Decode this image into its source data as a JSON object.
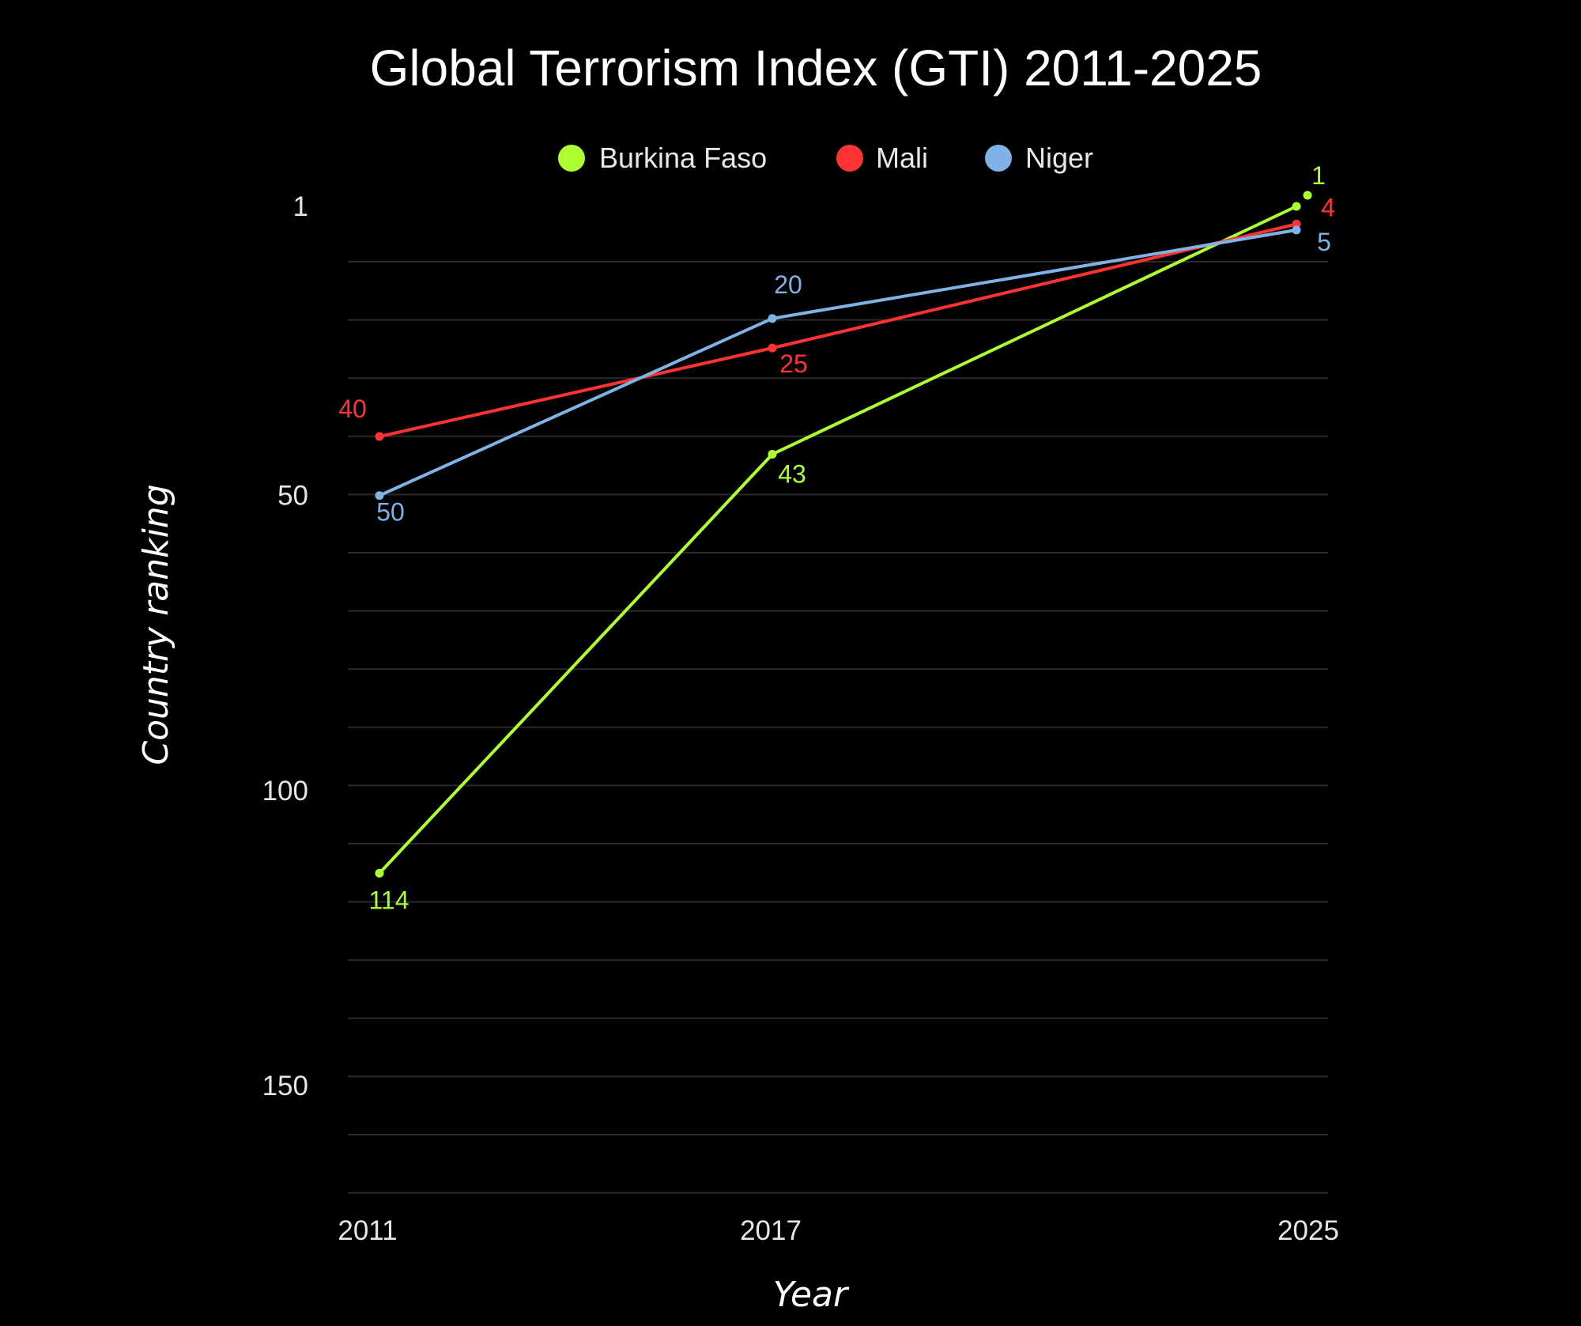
{
  "chart_data": {
    "type": "line",
    "title": "Global Terrorism Index (GTI) 2011-2025",
    "xlabel": "Year",
    "ylabel": "Country ranking",
    "x": [
      2011,
      2017,
      2025
    ],
    "x_tick_labels": [
      "2011",
      "2017",
      "2025"
    ],
    "y_ticks": [
      1,
      50,
      100,
      150
    ],
    "y_tick_labels": [
      "1",
      "50",
      "100",
      "150"
    ],
    "ylim": [
      170,
      1
    ],
    "y_inverted": true,
    "grid": true,
    "legend_position": "top-center",
    "series": [
      {
        "name": "Burkina Faso",
        "color": "#adff2f",
        "values": [
          114,
          43,
          1
        ],
        "labels": [
          "114",
          "43",
          "1"
        ]
      },
      {
        "name": "Mali",
        "color": "#ff3333",
        "values": [
          40,
          25,
          4
        ],
        "labels": [
          "40",
          "25",
          "4"
        ]
      },
      {
        "name": "Niger",
        "color": "#7fb3e6",
        "values": [
          50,
          20,
          5
        ],
        "labels": [
          "50",
          "20",
          "5"
        ]
      }
    ]
  }
}
